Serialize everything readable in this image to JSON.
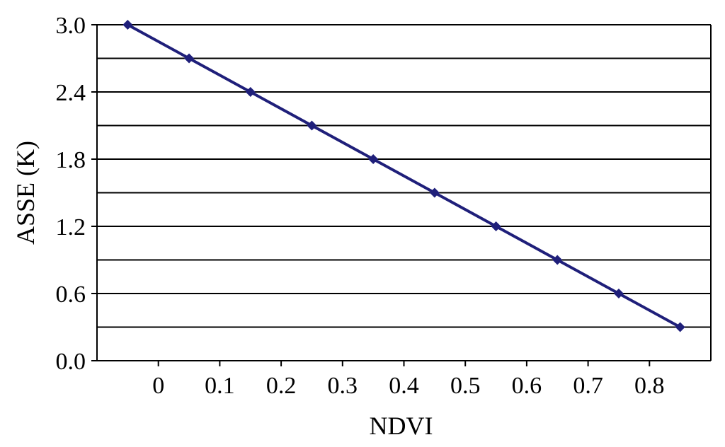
{
  "chart_data": {
    "type": "line",
    "title": "",
    "xlabel": "NDVI",
    "ylabel": "ASSE (K)",
    "xlim": [
      -0.1,
      0.9
    ],
    "ylim": [
      0.0,
      3.0
    ],
    "x_ticks": [
      0,
      0.1,
      0.2,
      0.3,
      0.4,
      0.5,
      0.6,
      0.7,
      0.8
    ],
    "x_tick_labels": [
      "0",
      "0.1",
      "0.2",
      "0.3",
      "0.4",
      "0.5",
      "0.6",
      "0.7",
      "0.8"
    ],
    "y_ticks": [
      0.0,
      0.6,
      1.2,
      1.8,
      2.4,
      3.0
    ],
    "y_tick_labels": [
      "0.0",
      "0.6",
      "1.2",
      "1.8",
      "2.4",
      "3.0"
    ],
    "gridlines_y": [
      0.3,
      0.6,
      0.9,
      1.2,
      1.5,
      1.8,
      2.1,
      2.4,
      2.7,
      3.0
    ],
    "grid": true,
    "legend": "none",
    "series": [
      {
        "x": [
          -0.05,
          0.05,
          0.15,
          0.25,
          0.35,
          0.45,
          0.55,
          0.65,
          0.75,
          0.85
        ],
        "values": [
          3.0,
          2.7,
          2.4,
          2.1,
          1.8,
          1.5,
          1.2,
          0.9,
          0.6,
          0.3
        ],
        "color": "#1f1f7a",
        "marker": "diamond"
      }
    ]
  }
}
